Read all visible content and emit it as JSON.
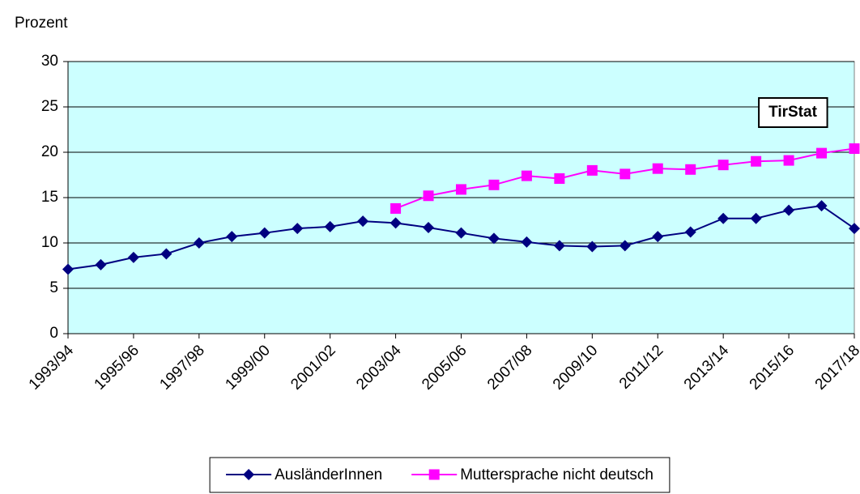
{
  "chart_data": {
    "type": "line",
    "y_axis_label": "Prozent",
    "annotation": "TirStat",
    "categories": [
      "1993/94",
      null,
      "1995/96",
      null,
      "1997/98",
      null,
      "1999/00",
      null,
      "2001/02",
      null,
      "2003/04",
      null,
      "2005/06",
      null,
      "2007/08",
      null,
      "2009/10",
      null,
      "2011/12",
      null,
      "2013/14",
      null,
      "2015/16",
      null,
      "2017/18"
    ],
    "series": [
      {
        "name": "AusländerInnen",
        "color": "#000080",
        "marker": "diamond",
        "values": [
          7.1,
          7.6,
          8.4,
          8.8,
          10.0,
          10.7,
          11.1,
          11.6,
          11.8,
          12.4,
          12.2,
          11.7,
          11.1,
          10.5,
          10.1,
          9.7,
          9.6,
          9.7,
          10.7,
          11.2,
          12.7,
          12.7,
          13.6,
          14.1,
          11.6
        ]
      },
      {
        "name": "Muttersprache nicht deutsch",
        "color": "#ff00ff",
        "marker": "square",
        "values": [
          null,
          null,
          null,
          null,
          null,
          null,
          null,
          null,
          null,
          null,
          13.8,
          15.2,
          15.9,
          16.4,
          17.4,
          17.1,
          18.0,
          17.6,
          18.2,
          18.1,
          18.6,
          19.0,
          19.1,
          19.9,
          20.4
        ]
      }
    ],
    "ylim": [
      0,
      30
    ],
    "yticks": [
      0,
      5,
      10,
      15,
      20,
      25,
      30
    ],
    "grid": true,
    "plot_background": "#ccffff",
    "legend": "bottom"
  }
}
